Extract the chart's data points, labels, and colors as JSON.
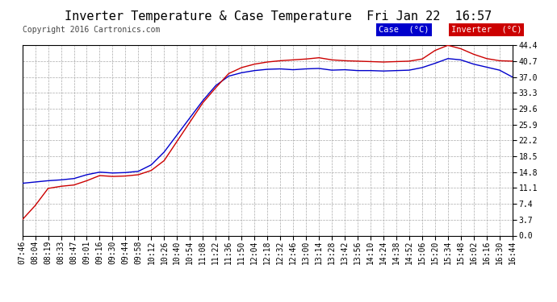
{
  "title": "Inverter Temperature & Case Temperature  Fri Jan 22  16:57",
  "copyright": "Copyright 2016 Cartronics.com",
  "background_color": "#ffffff",
  "plot_bg_color": "#ffffff",
  "grid_color": "#aaaaaa",
  "yticks": [
    0.0,
    3.7,
    7.4,
    11.1,
    14.8,
    18.5,
    22.2,
    25.9,
    29.6,
    33.3,
    37.0,
    40.7,
    44.4
  ],
  "xtick_labels": [
    "07:46",
    "08:04",
    "08:19",
    "08:33",
    "08:47",
    "09:01",
    "09:16",
    "09:30",
    "09:44",
    "09:58",
    "10:12",
    "10:26",
    "10:40",
    "10:54",
    "11:08",
    "11:22",
    "11:36",
    "11:50",
    "12:04",
    "12:18",
    "12:32",
    "12:46",
    "13:00",
    "13:14",
    "13:28",
    "13:42",
    "13:56",
    "14:10",
    "14:24",
    "14:38",
    "14:52",
    "15:06",
    "15:20",
    "15:34",
    "15:48",
    "16:02",
    "16:16",
    "16:30",
    "16:44"
  ],
  "case_color": "#0000cc",
  "inverter_color": "#cc0000",
  "legend_case_bg": "#0000cc",
  "legend_inverter_bg": "#cc0000",
  "legend_text_color": "#ffffff",
  "case_data": [
    12.2,
    12.5,
    12.8,
    13.0,
    13.3,
    14.2,
    14.8,
    14.6,
    14.7,
    15.0,
    16.5,
    19.5,
    23.5,
    27.5,
    31.5,
    35.0,
    37.2,
    38.0,
    38.5,
    38.8,
    38.9,
    38.7,
    38.9,
    39.0,
    38.6,
    38.7,
    38.5,
    38.5,
    38.4,
    38.5,
    38.6,
    39.2,
    40.2,
    41.3,
    41.0,
    40.0,
    39.3,
    38.6,
    37.0
  ],
  "inverter_data": [
    3.7,
    7.0,
    11.0,
    11.5,
    11.8,
    12.8,
    14.0,
    13.8,
    13.9,
    14.2,
    15.2,
    17.5,
    22.0,
    26.5,
    31.0,
    34.5,
    37.8,
    39.2,
    40.0,
    40.5,
    40.8,
    41.0,
    41.2,
    41.5,
    41.0,
    40.8,
    40.7,
    40.6,
    40.5,
    40.6,
    40.7,
    41.2,
    43.2,
    44.4,
    43.6,
    42.3,
    41.3,
    40.8,
    40.7
  ],
  "ylim": [
    0.0,
    44.4
  ],
  "title_fontsize": 11,
  "copyright_fontsize": 7,
  "tick_fontsize": 7,
  "legend_fontsize": 7.5
}
